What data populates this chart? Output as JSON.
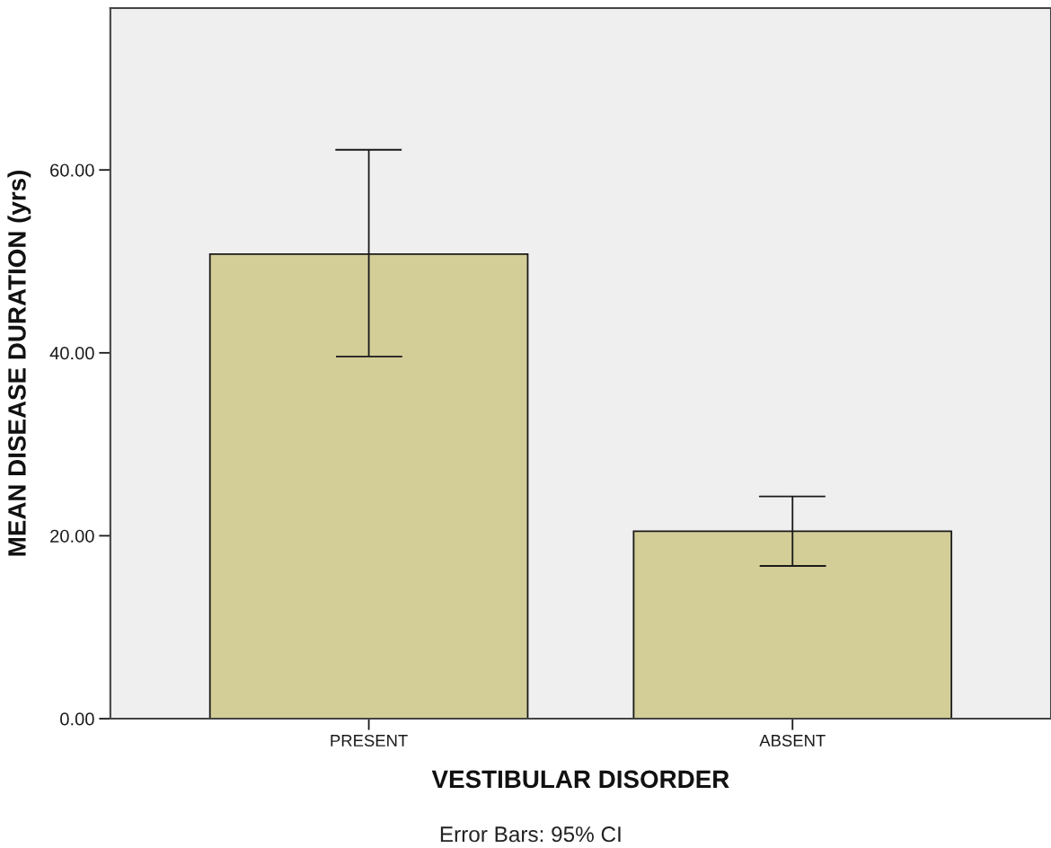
{
  "chart_data": {
    "type": "bar",
    "xlabel": "VESTIBULAR DISORDER",
    "ylabel": "MEAN DISEASE DURATION (yrs)",
    "categories": [
      "PRESENT",
      "ABSENT"
    ],
    "values": [
      50.8,
      20.5
    ],
    "errors": [
      [
        39.6,
        62.2
      ],
      [
        16.7,
        24.3
      ]
    ],
    "color": "#d3cd98",
    "ylim": [
      0,
      77.7
    ],
    "yticks": [
      {
        "value": 0,
        "label": "0.00"
      },
      {
        "value": 20,
        "label": "20.00"
      },
      {
        "value": 40,
        "label": "40.00"
      },
      {
        "value": 60,
        "label": "60.00"
      }
    ],
    "annotations": [
      "Error Bars: 95% CI"
    ]
  }
}
